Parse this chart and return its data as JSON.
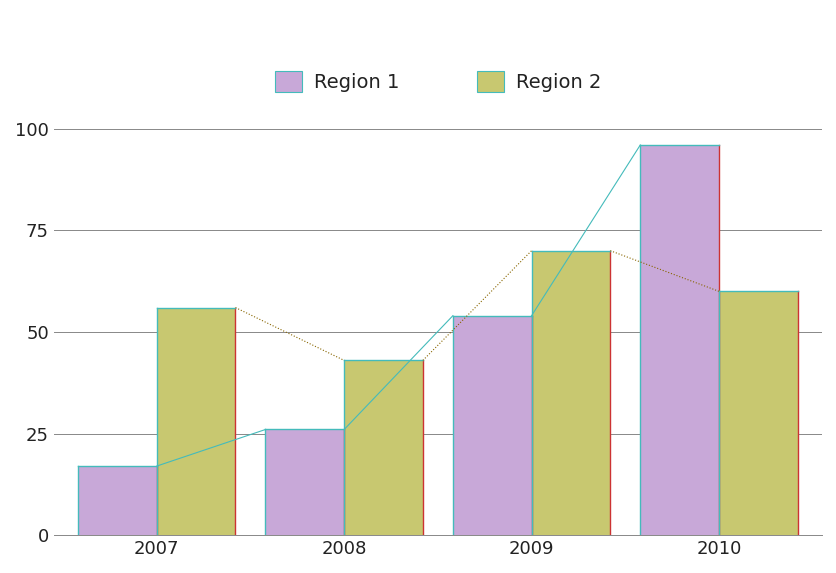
{
  "years": [
    "2007",
    "2008",
    "2009",
    "2010"
  ],
  "region1": [
    17,
    26,
    54,
    96
  ],
  "region2": [
    56,
    43,
    70,
    60
  ],
  "region1_color": "#c8a8d8",
  "region2_color": "#c8c870",
  "region1_label": "Region 1",
  "region2_label": "Region 2",
  "ylim": [
    0,
    105
  ],
  "yticks": [
    0,
    25,
    50,
    75,
    100
  ],
  "bar_width": 0.42,
  "background_color": "#ffffff",
  "grid_color": "#888888",
  "edge_left_color": "#44bbbb",
  "edge_right_color": "#cc3333",
  "dot_line_color_r1": "#44bbbb",
  "dot_line_color_r2": "#886600",
  "font_color": "#222222"
}
